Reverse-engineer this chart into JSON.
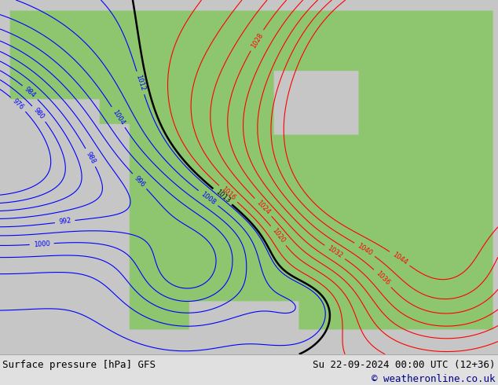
{
  "title_left": "Surface pressure [hPa] GFS",
  "title_right": "Su 22-09-2024 00:00 UTC (12+36)",
  "copyright": "© weatheronline.co.uk",
  "bg_color": "#c8c8c8",
  "fig_width": 6.34,
  "fig_height": 4.9,
  "dpi": 100,
  "bottom_bar_color": "#e0e0e0",
  "text_color": "#000000",
  "copyright_color": "#00008b",
  "font_size_bottom": 9,
  "land_color": [
    0.56,
    0.78,
    0.44
  ],
  "ocean_color": [
    0.78,
    0.78,
    0.78
  ]
}
